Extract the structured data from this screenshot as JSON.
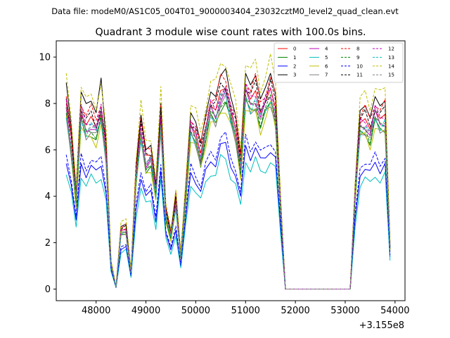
{
  "suptitle": "Data file: modeM0/AS1C05_004T01_9000003404_23032cztM0_level2_quad_clean.evt",
  "chart_data": {
    "type": "line",
    "title": "Quadrant 3 module wise count rates with 100.0s bins.",
    "xlabel": "",
    "ylabel": "",
    "x_offset_label": "+3.155e8",
    "xlim": [
      47200,
      54200
    ],
    "ylim": [
      -0.5,
      10.7
    ],
    "xticks": [
      48000,
      49000,
      50000,
      51000,
      52000,
      53000,
      54000
    ],
    "yticks": [
      0,
      2,
      4,
      6,
      8,
      10
    ],
    "grid": false,
    "legend_position": "top-right",
    "legend_columns": 4,
    "x": [
      47400,
      47500,
      47600,
      47700,
      47800,
      47900,
      48000,
      48100,
      48200,
      48300,
      48400,
      48500,
      48600,
      48700,
      48800,
      48900,
      49000,
      49100,
      49200,
      49300,
      49400,
      49500,
      49600,
      49700,
      49800,
      49900,
      50000,
      50100,
      50200,
      50300,
      50400,
      50500,
      50600,
      50700,
      50800,
      50900,
      51000,
      51100,
      51200,
      51300,
      51400,
      51500,
      51600,
      51700,
      51800,
      51900,
      52000,
      52100,
      52200,
      52300,
      52400,
      52500,
      52600,
      52700,
      52800,
      52900,
      53000,
      53100,
      53200,
      53300,
      53400,
      53500,
      53600,
      53700,
      53800,
      53900
    ],
    "template": [
      8.6,
      6.8,
      4.3,
      8.3,
      7.6,
      7.9,
      7.5,
      8.3,
      6.4,
      1.2,
      0.1,
      2.7,
      2.8,
      0.8,
      5.2,
      7.5,
      6.0,
      6.2,
      4.5,
      8.0,
      3.5,
      2.5,
      4.0,
      1.5,
      4.5,
      7.6,
      7.2,
      6.3,
      7.5,
      8.5,
      8.3,
      9.2,
      9.3,
      8.3,
      7.5,
      5.8,
      9.3,
      8.8,
      9.2,
      8.2,
      8.7,
      9.3,
      8.4,
      4.0,
      0.0,
      0.0,
      0.0,
      0.0,
      0.0,
      0.0,
      0.0,
      0.0,
      0.0,
      0.0,
      0.0,
      0.0,
      0.0,
      0.0,
      4.5,
      7.7,
      7.9,
      7.4,
      8.3,
      7.9,
      8.1,
      2.0
    ],
    "series": [
      {
        "name": "0",
        "color": "#ff0000",
        "dashed": false,
        "scale": 0.93,
        "offsets": [
          0,
          0.3,
          0,
          -0.2,
          0,
          0.1,
          0,
          -0.2,
          0,
          0,
          0,
          0,
          0,
          0,
          0.6,
          0.5,
          0.2,
          0,
          0,
          0,
          0.2,
          0,
          0.5,
          0,
          0,
          0,
          0,
          0,
          0,
          0,
          0,
          0,
          0,
          0,
          0,
          0,
          0,
          0,
          0,
          0,
          0,
          0,
          0,
          0,
          0,
          0,
          0,
          0,
          0,
          0,
          0,
          0,
          0,
          0,
          0,
          0,
          0,
          0,
          0,
          0,
          0,
          0,
          0,
          0,
          0,
          0
        ]
      },
      {
        "name": "1",
        "color": "#008000",
        "dashed": false,
        "scale": 0.86
      },
      {
        "name": "2",
        "color": "#0000ff",
        "dashed": false,
        "scale": 0.66
      },
      {
        "name": "3",
        "color": "#000000",
        "dashed": false,
        "scale": 1.0,
        "offsets": [
          0.3,
          0.2,
          0,
          0.2,
          0.4,
          0.2,
          0.1,
          0.8,
          0,
          0,
          0,
          0,
          0,
          0,
          0,
          0,
          0,
          0,
          0,
          0,
          0,
          0,
          0,
          0,
          0,
          0,
          0,
          0,
          0,
          0,
          0,
          0,
          0.2,
          0,
          0,
          0,
          0,
          0,
          0,
          0,
          0,
          0,
          0,
          0,
          0,
          0,
          0,
          0,
          0,
          0,
          0,
          0,
          0,
          0,
          0,
          0,
          0,
          0,
          0,
          0,
          0,
          0,
          0,
          0,
          0,
          0
        ]
      },
      {
        "name": "4",
        "color": "#c000c0",
        "dashed": false,
        "scale": 0.9
      },
      {
        "name": "5",
        "color": "#00bfbf",
        "dashed": false,
        "scale": 0.6
      },
      {
        "name": "6",
        "color": "#bfbf00",
        "dashed": false,
        "scale": 0.84
      },
      {
        "name": "7",
        "color": "#808080",
        "dashed": false,
        "scale": 0.87
      },
      {
        "name": "8",
        "color": "#ff0000",
        "dashed": true,
        "scale": 0.98
      },
      {
        "name": "9",
        "color": "#008000",
        "dashed": true,
        "scale": 0.88
      },
      {
        "name": "10",
        "color": "#0000ff",
        "dashed": true,
        "scale": 0.7
      },
      {
        "name": "11",
        "color": "#000000",
        "dashed": true,
        "scale": 0.95
      },
      {
        "name": "12",
        "color": "#c000c0",
        "dashed": true,
        "scale": 0.93
      },
      {
        "name": "13",
        "color": "#00bfbf",
        "dashed": true,
        "scale": 0.89
      },
      {
        "name": "14",
        "color": "#bfbf00",
        "dashed": true,
        "scale": 1.06
      },
      {
        "name": "15",
        "color": "#808080",
        "dashed": true,
        "scale": 0.91
      }
    ]
  }
}
